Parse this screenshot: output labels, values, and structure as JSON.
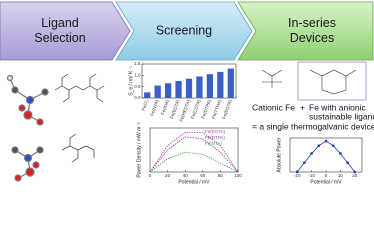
{
  "stages": [
    {
      "lines": [
        "Ligand",
        "Selection"
      ]
    },
    {
      "lines": [
        "Screening"
      ]
    },
    {
      "lines": [
        "In-series",
        "Devices"
      ]
    }
  ],
  "seebeck_chart": {
    "type": "bar",
    "y_label": "S_e / mV K⁻¹",
    "categories": [
      "FeCl₃",
      "Fe(NTA)",
      "Fe(IDA)",
      "Fe(EDTA)",
      "Fe(HEDTA)",
      "Fe(CDTA)",
      "Fe(DTPA)",
      "Fe(TTHA)",
      "Fe(EGTA)"
    ],
    "values": [
      0.25,
      0.55,
      0.65,
      0.75,
      0.85,
      0.95,
      1.05,
      1.15,
      1.3
    ],
    "ylim": [
      0,
      1.5
    ],
    "yticks": [
      {
        "value": 0,
        "label": "0.0"
      },
      {
        "value": 0.5,
        "label": "0.5"
      },
      {
        "value": 1,
        "label": "1.0"
      },
      {
        "value": 1.5,
        "label": "1.5"
      }
    ],
    "color": "#3b5fc4"
  },
  "power_chart": {
    "type": "line",
    "y_label": "Power Density / mW m⁻²",
    "x_label": "Potential / mV",
    "x": [
      0,
      20,
      40,
      60,
      80,
      100
    ],
    "xlim": [
      0,
      100
    ],
    "xticks": [
      0,
      20,
      40,
      60,
      80,
      100
    ],
    "ylim": [
      0,
      1
    ],
    "series": [
      {
        "name": "Fe(EGTA)",
        "color": "#c0399a",
        "values": [
          0,
          0.6,
          0.9,
          0.9,
          0.6,
          0
        ]
      },
      {
        "name": "Fe(DTPA)",
        "color": "#7a3fb0",
        "values": [
          0,
          0.5,
          0.8,
          0.75,
          0.45,
          0
        ]
      },
      {
        "name": "Fe(NTA)",
        "color": "#3aa14a",
        "values": [
          0,
          0.3,
          0.45,
          0.4,
          0.2,
          0
        ]
      }
    ]
  },
  "device": {
    "cationic": "Cationic Fe",
    "plus": "+",
    "anionic_lines": [
      "Fe with anionic",
      "sustainable ligands"
    ],
    "equals": "= a single thermogalvanic device"
  },
  "absolute_chart": {
    "type": "line",
    "y_label": "Absolute Power",
    "x_label": "Potential / mV",
    "x": [
      -20,
      -15,
      -10,
      -5,
      0,
      5,
      10,
      15,
      20
    ],
    "values": [
      0,
      0.3,
      0.6,
      0.85,
      1,
      0.85,
      0.6,
      0.3,
      0
    ],
    "xlim": [
      -25,
      25
    ],
    "xticks": [
      -20,
      -10,
      0,
      10,
      20
    ],
    "ylim": [
      0,
      1.1
    ],
    "color": "#1f3fa8"
  }
}
